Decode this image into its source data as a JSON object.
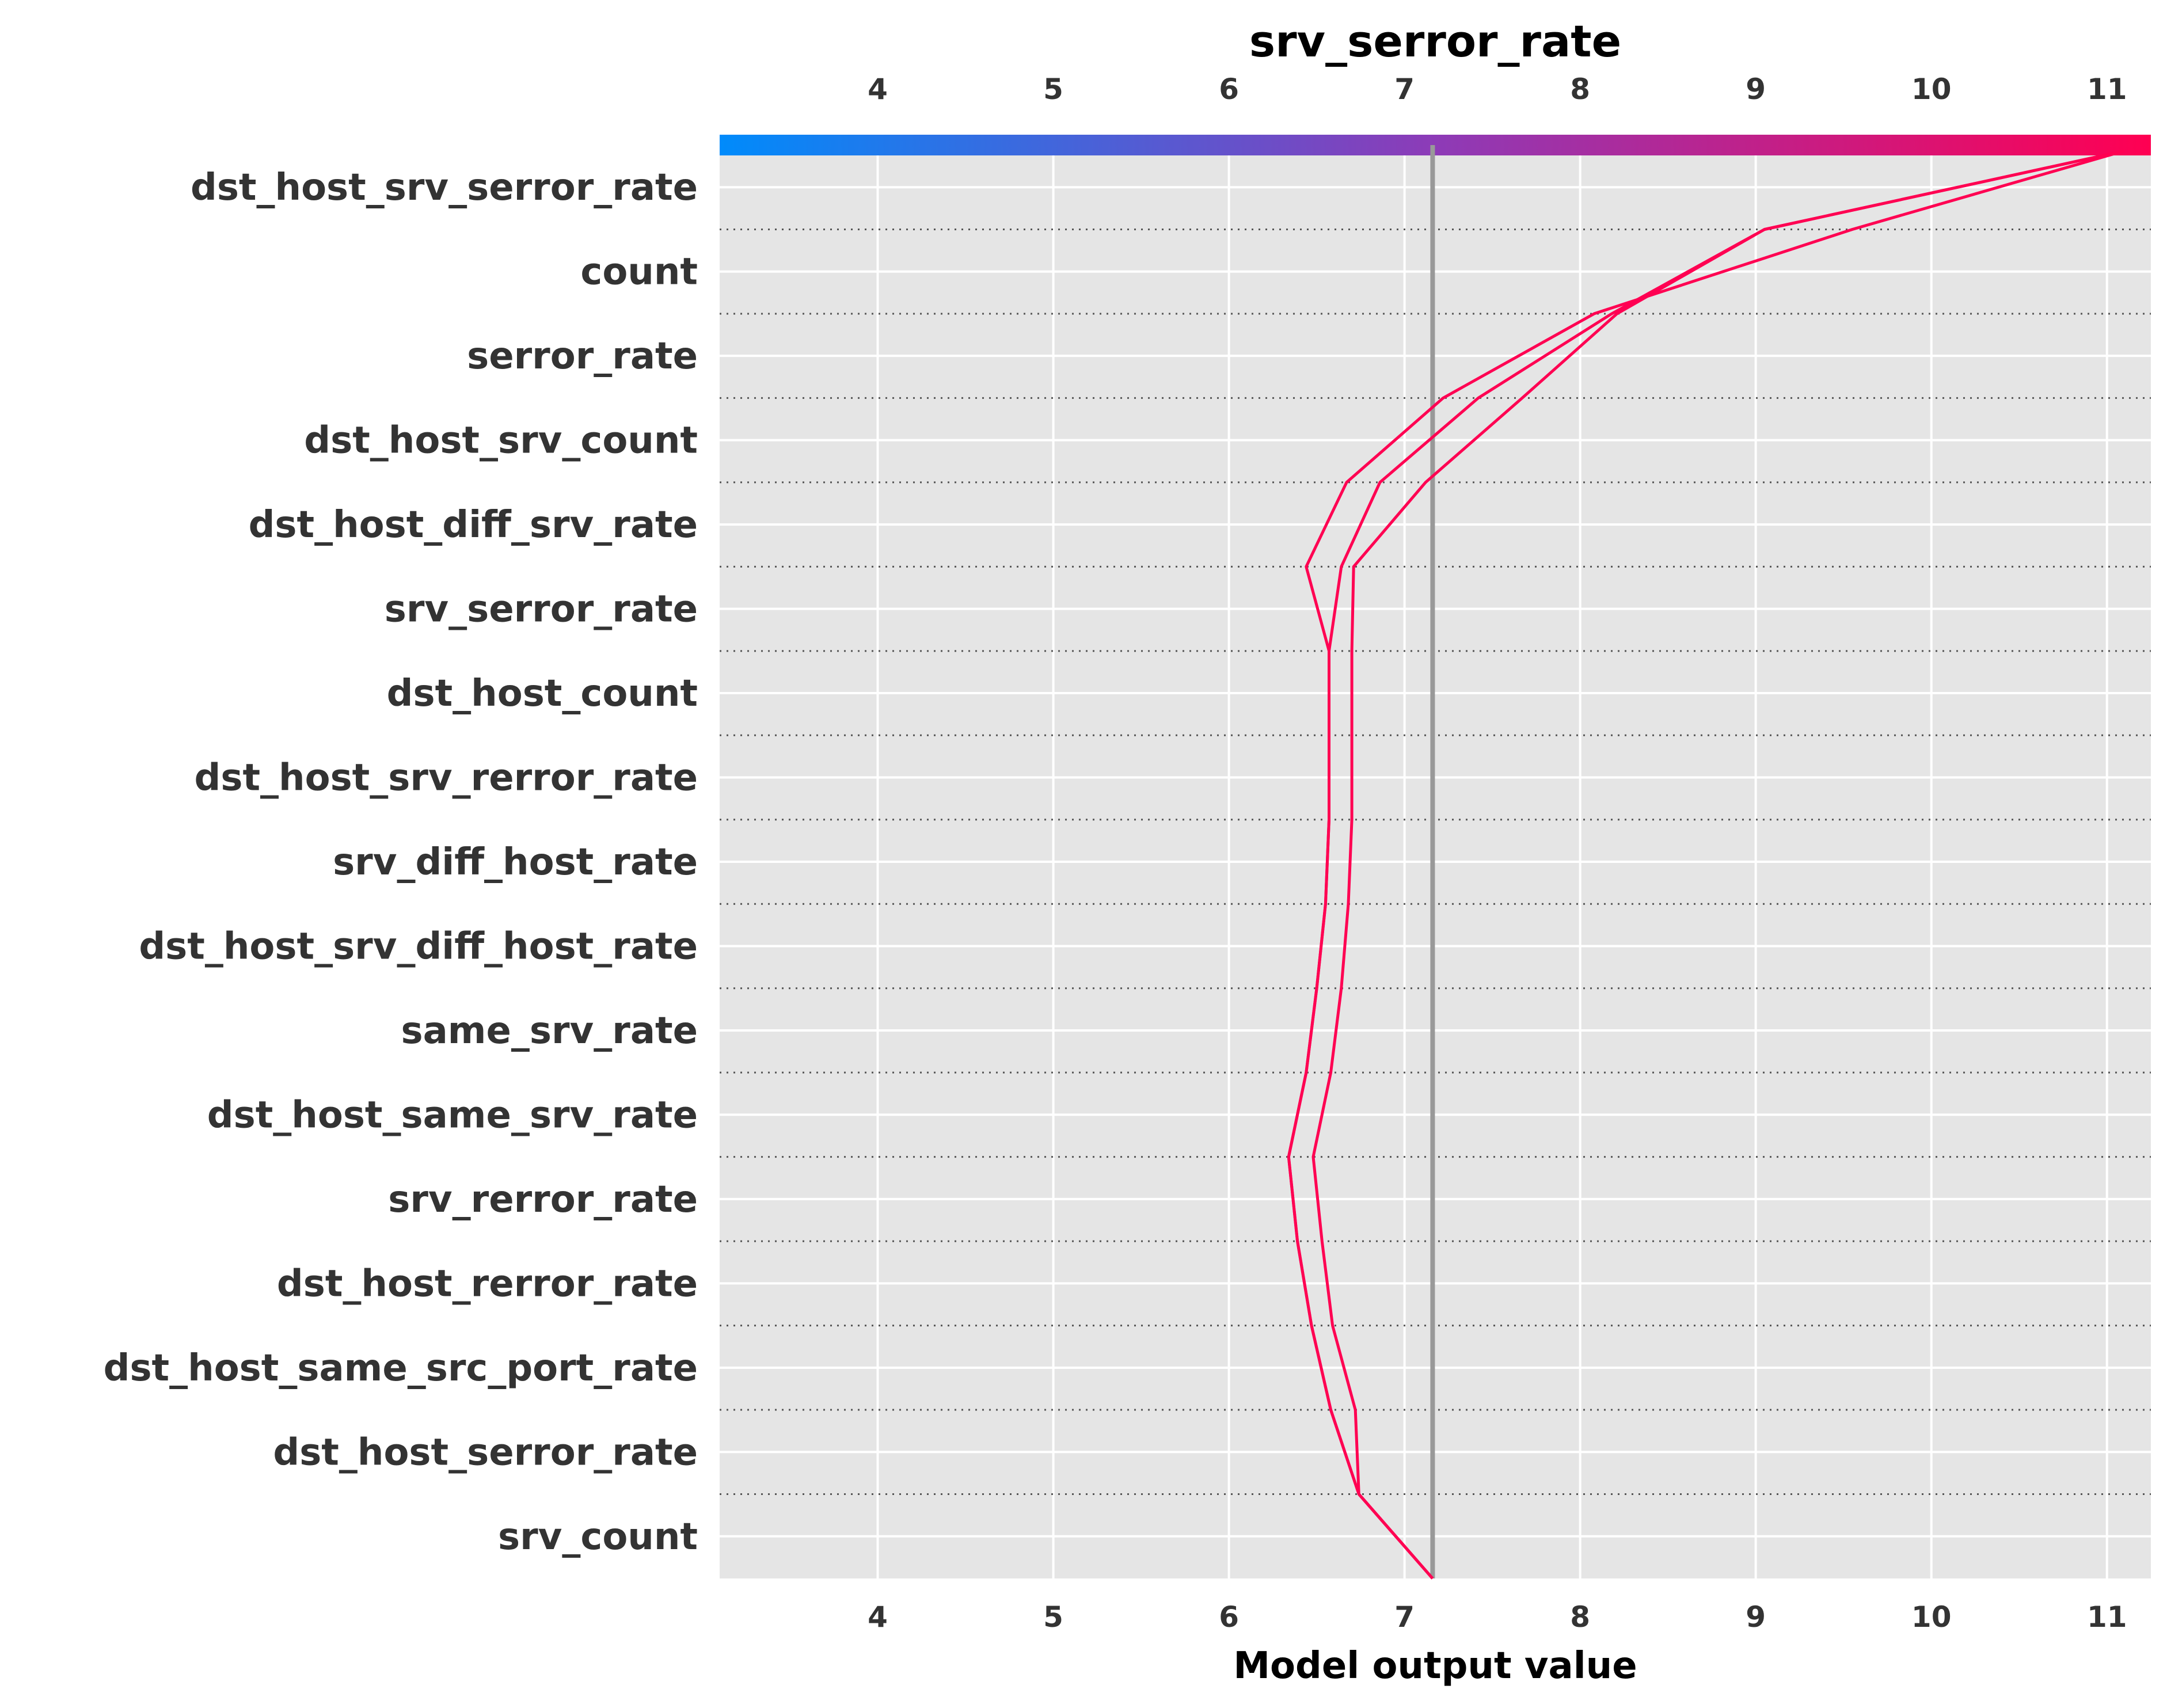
{
  "chart_data": {
    "type": "line",
    "title": "srv_serror_rate",
    "xlabel": "Model output value",
    "xlim": [
      3.1,
      11.25
    ],
    "xticks": [
      4,
      5,
      6,
      7,
      8,
      9,
      10,
      11
    ],
    "base_value": 7.16,
    "colorbar": {
      "stops": [
        "#008bfb",
        "#8d3bb7",
        "#ff0052"
      ]
    },
    "grid": true,
    "line_color": "#ff0052",
    "features": [
      "dst_host_srv_serror_rate",
      "count",
      "serror_rate",
      "dst_host_srv_count",
      "dst_host_diff_srv_rate",
      "srv_serror_rate",
      "dst_host_count",
      "dst_host_srv_rerror_rate",
      "srv_diff_host_rate",
      "dst_host_srv_diff_host_rate",
      "same_srv_rate",
      "dst_host_same_srv_rate",
      "srv_rerror_rate",
      "dst_host_rerror_rate",
      "dst_host_same_src_port_rate",
      "dst_host_serror_rate",
      "srv_count"
    ],
    "series": [
      {
        "values": [
          7.16,
          6.74,
          6.58,
          6.47,
          6.39,
          6.34,
          6.44,
          6.5,
          6.55,
          6.57,
          6.57,
          6.57,
          6.44,
          6.67,
          7.22,
          8.08,
          9.55,
          11.1
        ]
      },
      {
        "values": [
          7.16,
          6.74,
          6.72,
          6.59,
          6.53,
          6.48,
          6.58,
          6.64,
          6.68,
          6.7,
          6.7,
          6.7,
          6.71,
          7.12,
          7.67,
          8.21,
          9.05,
          11.1
        ]
      },
      {
        "values": [
          7.16,
          6.74,
          6.58,
          6.47,
          6.39,
          6.34,
          6.44,
          6.5,
          6.55,
          6.57,
          6.57,
          6.57,
          6.64,
          6.86,
          7.42,
          8.18,
          9.05,
          11.1
        ]
      }
    ]
  }
}
